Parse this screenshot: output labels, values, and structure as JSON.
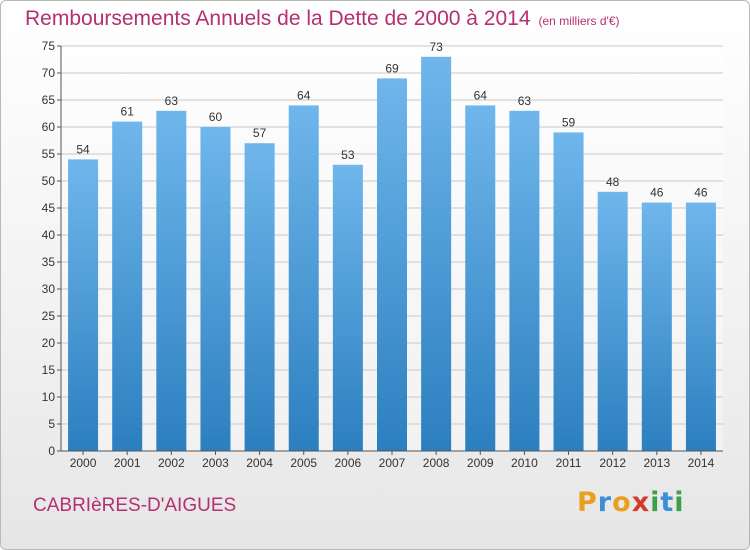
{
  "title": "Remboursements Annuels de la Dette de 2000 à 2014",
  "unit": "(en milliers d'€)",
  "commune": "CABRIèRES-D'AIGUES",
  "logo": {
    "letters": [
      "P",
      "r",
      "o",
      "x",
      "i",
      "t",
      "i"
    ],
    "colors": [
      "#e8a020",
      "#3a8fd6",
      "#e8a020",
      "#d33a2c",
      "#3aa04a",
      "#3a8fd6",
      "#3aa04a"
    ]
  },
  "colors": {
    "bar_light": "#6fb6ec",
    "bar_dark": "#2c7fbf",
    "title": "#b52f72",
    "grid": "#c9c9c9"
  },
  "chart_data": {
    "type": "bar",
    "categories": [
      "2000",
      "2001",
      "2002",
      "2003",
      "2004",
      "2005",
      "2006",
      "2007",
      "2008",
      "2009",
      "2010",
      "2011",
      "2012",
      "2013",
      "2014"
    ],
    "values": [
      54,
      61,
      63,
      60,
      57,
      64,
      53,
      69,
      73,
      64,
      63,
      59,
      48,
      46,
      46
    ],
    "ylim": [
      0,
      75
    ],
    "yticks": [
      0,
      5,
      10,
      15,
      20,
      25,
      30,
      35,
      40,
      45,
      50,
      55,
      60,
      65,
      70,
      75
    ],
    "grid": true
  }
}
